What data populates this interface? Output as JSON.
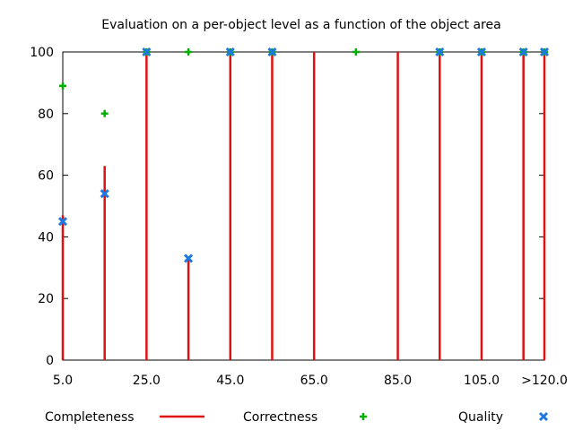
{
  "chart_data": {
    "type": "line",
    "title": "Evaluation on a per-object level as a function of the object area",
    "xlabel": "",
    "ylabel": "",
    "xlim": [
      0,
      115
    ],
    "ylim": [
      0,
      100
    ],
    "x_ticks": [
      {
        "value": 0,
        "label": "5.0"
      },
      {
        "value": 20,
        "label": "25.0"
      },
      {
        "value": 40,
        "label": "45.0"
      },
      {
        "value": 60,
        "label": "65.0"
      },
      {
        "value": 80,
        "label": "85.0"
      },
      {
        "value": 100,
        "label": "105.0"
      },
      {
        "value": 115,
        "label": ">120.0"
      }
    ],
    "y_ticks": [
      0,
      20,
      40,
      60,
      80,
      100
    ],
    "grid": false,
    "legend_position": "bottom",
    "series": [
      {
        "name": "Completeness",
        "style": "impulses",
        "color": "#e01010",
        "x": [
          0,
          10,
          20,
          30,
          40,
          50,
          60,
          80,
          90,
          100,
          110,
          115
        ],
        "values": [
          47,
          63,
          100,
          33,
          100,
          100,
          100,
          100,
          100,
          100,
          100,
          100
        ]
      },
      {
        "name": "Correctness",
        "style": "points-plus",
        "color": "#00b000",
        "x": [
          0,
          10,
          20,
          30,
          40,
          50,
          70,
          90,
          100,
          110,
          115
        ],
        "values": [
          89,
          80,
          100,
          100,
          100,
          100,
          100,
          100,
          100,
          100,
          100
        ]
      },
      {
        "name": "Quality",
        "style": "points-x",
        "color": "#1e78e0",
        "x": [
          0,
          10,
          20,
          30,
          40,
          50,
          90,
          100,
          110,
          115
        ],
        "values": [
          45,
          54,
          100,
          33,
          100,
          100,
          100,
          100,
          100,
          100
        ]
      }
    ]
  }
}
